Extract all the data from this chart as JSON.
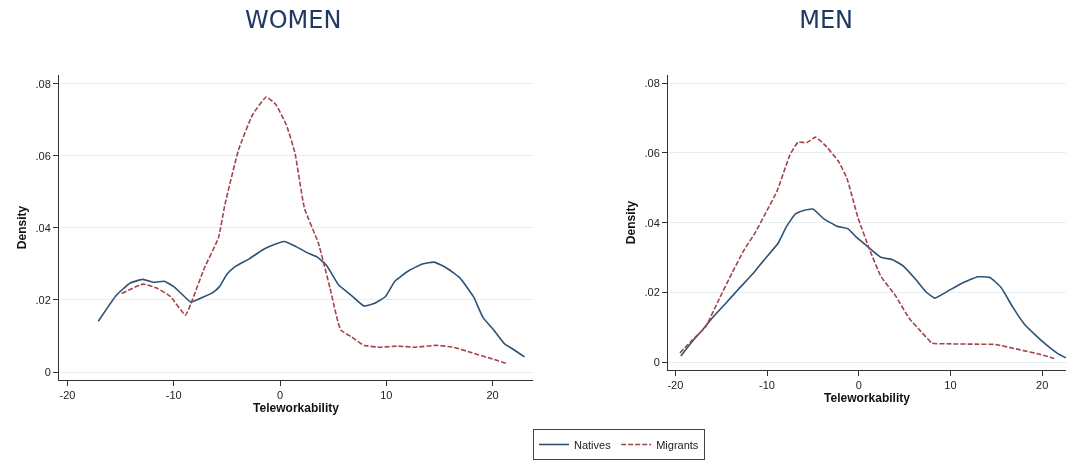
{
  "chart_data": [
    {
      "type": "line",
      "title": "WOMEN",
      "xlabel": "Teleworkability",
      "ylabel": "Density",
      "xlim": [
        -20.8,
        23.8
      ],
      "ylim": [
        -0.0022,
        0.0824
      ],
      "xticks": [
        -20,
        -10,
        0,
        10,
        20
      ],
      "yticks": [
        0,
        {
          "value": 0.02,
          "label": ".02"
        },
        {
          "value": 0.04,
          "label": ".04"
        },
        {
          "value": 0.06,
          "label": ".06"
        },
        {
          "value": 0.08,
          "label": ".08"
        }
      ],
      "grid": "y",
      "legend": false,
      "series": [
        {
          "color": "#2e5274",
          "line_style": "solid",
          "x": [
            -17.1,
            -15.4,
            -14.1,
            -12.9,
            -11.9,
            -10.9,
            -10.0,
            -9.3,
            -8.4,
            -7.7,
            -6.3,
            -5.7,
            -5.0,
            -4.2,
            -2.9,
            -1.7,
            -1.0,
            0.4,
            1.5,
            2.5,
            3.5,
            4.4,
            5.5,
            6.7,
            7.9,
            8.9,
            9.9,
            10.8,
            12.1,
            13.4,
            14.5,
            15.6,
            16.9,
            18.2,
            19.1,
            20.1,
            21.1,
            22.0,
            23.0
          ],
          "values": [
            0.0141,
            0.0213,
            0.0247,
            0.0257,
            0.0249,
            0.0252,
            0.0237,
            0.0218,
            0.0194,
            0.0202,
            0.0221,
            0.0237,
            0.0271,
            0.0293,
            0.0314,
            0.0338,
            0.0348,
            0.0362,
            0.0348,
            0.0332,
            0.0319,
            0.0295,
            0.0242,
            0.0213,
            0.0183,
            0.0191,
            0.0209,
            0.0252,
            0.0281,
            0.03,
            0.0305,
            0.029,
            0.0262,
            0.0209,
            0.0151,
            0.0117,
            0.0079,
            0.0062,
            0.0042
          ]
        },
        {
          "color": "#a0464b",
          "line_style": "dashed",
          "x": [
            -14.9,
            -12.9,
            -11.6,
            -10.3,
            -8.9,
            -8.4,
            -7.1,
            -5.8,
            -5.2,
            -3.9,
            -2.6,
            -1.3,
            -0.4,
            0.6,
            1.4,
            2.3,
            3.6,
            4.7,
            5.7,
            6.7,
            7.9,
            9.5,
            11.1,
            12.7,
            14.7,
            16.3,
            17.9,
            19.8,
            21.4
          ],
          "values": [
            0.0218,
            0.0244,
            0.0233,
            0.0209,
            0.0158,
            0.0189,
            0.029,
            0.0372,
            0.0463,
            0.0617,
            0.0713,
            0.0763,
            0.0742,
            0.0685,
            0.0608,
            0.0454,
            0.0358,
            0.0233,
            0.0117,
            0.0098,
            0.0074,
            0.0069,
            0.0072,
            0.0069,
            0.0074,
            0.0069,
            0.0055,
            0.0038,
            0.0023
          ]
        }
      ]
    },
    {
      "type": "line",
      "title": "MEN",
      "xlabel": "Teleworkability",
      "ylabel": "Density",
      "xlim": [
        -20.8,
        22.6
      ],
      "ylim": [
        -0.0022,
        0.0823
      ],
      "xticks": [
        -20,
        -10,
        0,
        10,
        20
      ],
      "yticks": [
        0,
        {
          "value": 0.02,
          "label": ".02"
        },
        {
          "value": 0.04,
          "label": ".04"
        },
        {
          "value": 0.06,
          "label": ".06"
        },
        {
          "value": 0.08,
          "label": ".08"
        }
      ],
      "grid": "y",
      "legend": "bottom",
      "series": [
        {
          "name": "Natives",
          "color": "#2e5274",
          "line_style": "solid",
          "x": [
            -19.4,
            -18.1,
            -16.9,
            -16.0,
            -14.4,
            -13.1,
            -11.6,
            -10.3,
            -8.8,
            -7.9,
            -6.9,
            -6.0,
            -5.0,
            -3.8,
            -2.4,
            -1.2,
            -0.2,
            0.9,
            2.4,
            3.7,
            4.9,
            6.2,
            7.4,
            8.3,
            9.6,
            11.2,
            13.0,
            14.3,
            15.5,
            16.8,
            18.0,
            19.3,
            20.5,
            21.7,
            22.6
          ],
          "values": [
            0.0018,
            0.0062,
            0.0097,
            0.0126,
            0.0172,
            0.021,
            0.0252,
            0.0294,
            0.0341,
            0.0388,
            0.0425,
            0.0435,
            0.0439,
            0.0411,
            0.039,
            0.0383,
            0.0357,
            0.0333,
            0.0301,
            0.0294,
            0.0275,
            0.0238,
            0.02,
            0.0184,
            0.0202,
            0.0226,
            0.0245,
            0.0243,
            0.0215,
            0.0158,
            0.0111,
            0.0077,
            0.0049,
            0.0025,
            0.0013
          ]
        },
        {
          "name": "Migrants",
          "color": "#a0464b",
          "line_style": "dashed",
          "x": [
            -19.5,
            -18.1,
            -16.7,
            -15.3,
            -13.8,
            -12.5,
            -11.3,
            -10.0,
            -8.9,
            -7.5,
            -6.6,
            -5.7,
            -4.7,
            -3.5,
            -2.2,
            -1.3,
            -0.1,
            1.2,
            2.4,
            4.0,
            5.5,
            6.8,
            8.0,
            9.6,
            12.7,
            14.9,
            17.4,
            19.9,
            21.3
          ],
          "values": [
            0.0027,
            0.0065,
            0.0102,
            0.0177,
            0.0257,
            0.0322,
            0.0371,
            0.0435,
            0.0491,
            0.0594,
            0.0631,
            0.0629,
            0.0645,
            0.0617,
            0.0575,
            0.0528,
            0.0416,
            0.0322,
            0.0247,
            0.0191,
            0.0126,
            0.0088,
            0.0055,
            0.0053,
            0.0052,
            0.0051,
            0.0037,
            0.0022,
            0.0011
          ]
        }
      ]
    }
  ]
}
